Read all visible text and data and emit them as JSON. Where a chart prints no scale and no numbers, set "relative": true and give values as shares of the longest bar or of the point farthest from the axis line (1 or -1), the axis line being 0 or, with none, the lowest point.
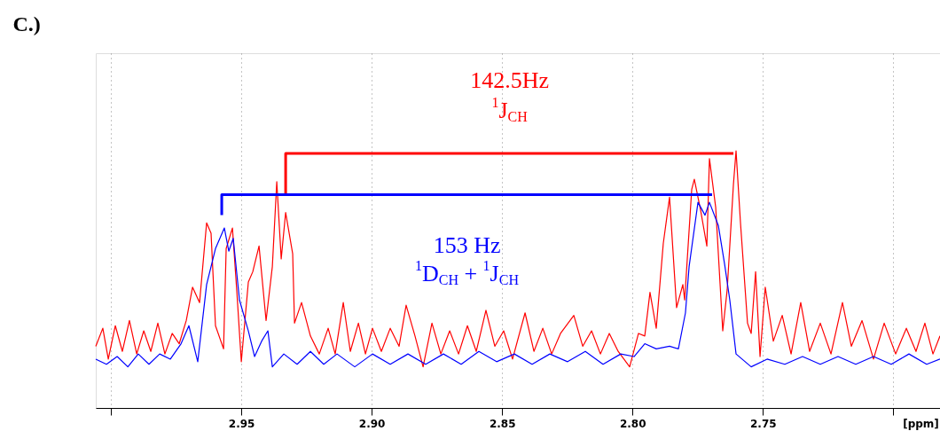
{
  "chart_data": {
    "type": "line",
    "title": "C.)",
    "xlabel": "[ppm]",
    "relative": true,
    "grid": "x",
    "xlim": [
      3.0058,
      2.6821
    ],
    "xticks": [
      {
        "value": 3.0,
        "label": null
      },
      2.95,
      {
        "value": 2.9,
        "label": "2.90"
      },
      2.85,
      {
        "value": 2.8,
        "label": "2.80"
      },
      2.75,
      {
        "value": 2.7,
        "label": null
      }
    ],
    "series": [
      {
        "color": "#ff0000",
        "x": [
          3.0058,
          3.0031,
          3.001,
          2.9983,
          2.9956,
          2.9929,
          2.9901,
          2.9874,
          2.9847,
          2.982,
          2.9793,
          2.9765,
          2.9738,
          2.9711,
          2.9687,
          2.966,
          2.9633,
          2.9616,
          2.9599,
          2.9568,
          2.9558,
          2.9534,
          2.9517,
          2.95,
          2.9473,
          2.9456,
          2.9432,
          2.9405,
          2.9381,
          2.9364,
          2.9347,
          2.933,
          2.9303,
          2.9296,
          2.9269,
          2.9235,
          2.9201,
          2.9167,
          2.914,
          2.9109,
          2.9082,
          2.9051,
          2.9024,
          2.8997,
          2.8963,
          2.8929,
          2.8895,
          2.8868,
          2.8834,
          2.8803,
          2.8769,
          2.8735,
          2.8701,
          2.8667,
          2.8633,
          2.8599,
          2.8562,
          2.8528,
          2.8494,
          2.846,
          2.8412,
          2.8378,
          2.8344,
          2.831,
          2.8276,
          2.8225,
          2.8191,
          2.8157,
          2.8123,
          2.8089,
          2.8055,
          2.8011,
          2.7977,
          2.7953,
          2.7933,
          2.7909,
          2.7882,
          2.7858,
          2.7831,
          2.7807,
          2.78,
          2.7773,
          2.7763,
          2.7739,
          2.7715,
          2.7705,
          2.7681,
          2.7654,
          2.7637,
          2.7613,
          2.7603,
          2.7586,
          2.7559,
          2.7545,
          2.7528,
          2.7511,
          2.7491,
          2.746,
          2.7426,
          2.7392,
          2.7355,
          2.7321,
          2.728,
          2.7239,
          2.7195,
          2.7161,
          2.712,
          2.7076,
          2.7035,
          2.6991,
          2.695,
          2.6913,
          2.6879,
          2.6848,
          2.6821
        ],
        "values": [
          0.24,
          0.31,
          0.19,
          0.32,
          0.22,
          0.34,
          0.21,
          0.3,
          0.22,
          0.33,
          0.21,
          0.29,
          0.25,
          0.34,
          0.47,
          0.41,
          0.72,
          0.68,
          0.32,
          0.23,
          0.62,
          0.7,
          0.45,
          0.18,
          0.49,
          0.53,
          0.63,
          0.34,
          0.55,
          0.88,
          0.58,
          0.76,
          0.6,
          0.33,
          0.41,
          0.28,
          0.21,
          0.31,
          0.21,
          0.41,
          0.22,
          0.33,
          0.21,
          0.31,
          0.22,
          0.31,
          0.24,
          0.4,
          0.28,
          0.16,
          0.33,
          0.21,
          0.3,
          0.21,
          0.32,
          0.22,
          0.38,
          0.24,
          0.3,
          0.19,
          0.37,
          0.22,
          0.31,
          0.21,
          0.29,
          0.36,
          0.24,
          0.3,
          0.21,
          0.29,
          0.22,
          0.16,
          0.29,
          0.28,
          0.45,
          0.31,
          0.64,
          0.82,
          0.39,
          0.48,
          0.42,
          0.85,
          0.89,
          0.77,
          0.63,
          0.97,
          0.78,
          0.3,
          0.46,
          0.87,
          1.0,
          0.72,
          0.33,
          0.29,
          0.53,
          0.2,
          0.47,
          0.26,
          0.36,
          0.21,
          0.41,
          0.22,
          0.33,
          0.21,
          0.41,
          0.24,
          0.34,
          0.19,
          0.33,
          0.21,
          0.31,
          0.22,
          0.33,
          0.21,
          0.28
        ]
      },
      {
        "color": "#0000ff",
        "x": [
          3.0058,
          3.0017,
          2.9976,
          2.9935,
          2.9895,
          2.9854,
          2.9813,
          2.9772,
          2.9731,
          2.9701,
          2.9667,
          2.9633,
          2.9599,
          2.9565,
          2.9548,
          2.9531,
          2.9507,
          2.9473,
          2.9449,
          2.9422,
          2.9398,
          2.9381,
          2.9337,
          2.9286,
          2.9235,
          2.9184,
          2.9133,
          2.9065,
          2.8997,
          2.8929,
          2.8861,
          2.8793,
          2.8725,
          2.8657,
          2.8589,
          2.8521,
          2.8453,
          2.8385,
          2.8317,
          2.8249,
          2.8181,
          2.8113,
          2.8045,
          2.7994,
          2.7953,
          2.7909,
          2.7858,
          2.7824,
          2.7797,
          2.7783,
          2.7749,
          2.7722,
          2.7705,
          2.7671,
          2.7647,
          2.7627,
          2.7603,
          2.7545,
          2.7484,
          2.7416,
          2.7348,
          2.728,
          2.7212,
          2.7144,
          2.7076,
          2.7008,
          2.694,
          2.6872,
          2.6821
        ],
        "values": [
          0.19,
          0.17,
          0.2,
          0.16,
          0.21,
          0.17,
          0.21,
          0.19,
          0.25,
          0.32,
          0.18,
          0.48,
          0.62,
          0.7,
          0.61,
          0.66,
          0.42,
          0.3,
          0.2,
          0.26,
          0.3,
          0.16,
          0.21,
          0.17,
          0.22,
          0.17,
          0.21,
          0.16,
          0.21,
          0.17,
          0.21,
          0.17,
          0.21,
          0.17,
          0.22,
          0.18,
          0.21,
          0.17,
          0.21,
          0.18,
          0.22,
          0.17,
          0.21,
          0.2,
          0.25,
          0.23,
          0.24,
          0.23,
          0.37,
          0.55,
          0.8,
          0.75,
          0.8,
          0.71,
          0.56,
          0.42,
          0.21,
          0.16,
          0.19,
          0.17,
          0.2,
          0.17,
          0.2,
          0.17,
          0.2,
          0.17,
          0.21,
          0.17,
          0.19
        ]
      },
      {
        "color": "#ff0000",
        "x": [
          2.933,
          2.933,
          2.7613
        ],
        "values": [
          0.83,
          0.99,
          0.99
        ]
      },
      {
        "color": "#0000ff",
        "x": [
          2.9575,
          2.9575,
          2.7695
        ],
        "values": [
          0.75,
          0.83,
          0.83
        ]
      }
    ],
    "annotations": [
      "142.5Hz",
      "$^{1}$J$_{CH}$",
      "153 Hz",
      "$^{1}$D$_{CH}$ + $^{1}$J$_{CH}$"
    ]
  }
}
